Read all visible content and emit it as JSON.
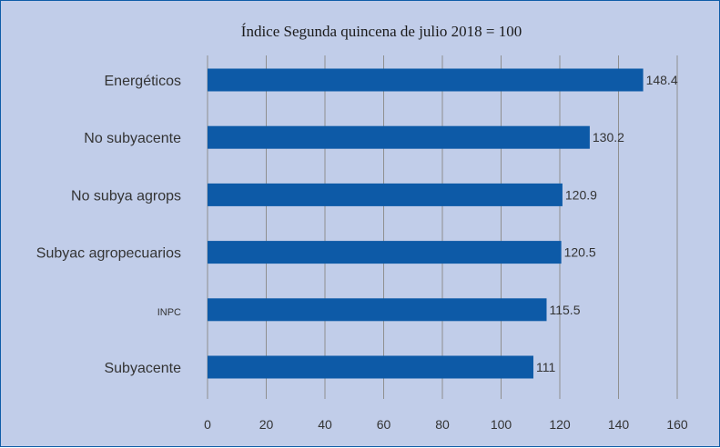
{
  "chart_data": {
    "type": "bar",
    "orientation": "horizontal",
    "title": "Índice Segunda quincena de julio 2018 = 100",
    "categories": [
      "Energéticos",
      "No subyacente",
      "No subya agrops",
      "Subyac agropecuarios",
      "INPC",
      "Subyacente"
    ],
    "values": [
      148.4,
      130.2,
      120.9,
      120.5,
      115.5,
      111
    ],
    "value_labels": [
      "148.4",
      "130.2",
      "120.9",
      "120.5",
      "115.5",
      "111"
    ],
    "xlim": [
      0,
      160
    ],
    "xticks": [
      "0",
      "20",
      "40",
      "60",
      "80",
      "100",
      "120",
      "140",
      "160"
    ],
    "grid": true,
    "legend": "none",
    "bar_color": "#0d5aa7",
    "background_color": "#c1cde9"
  }
}
